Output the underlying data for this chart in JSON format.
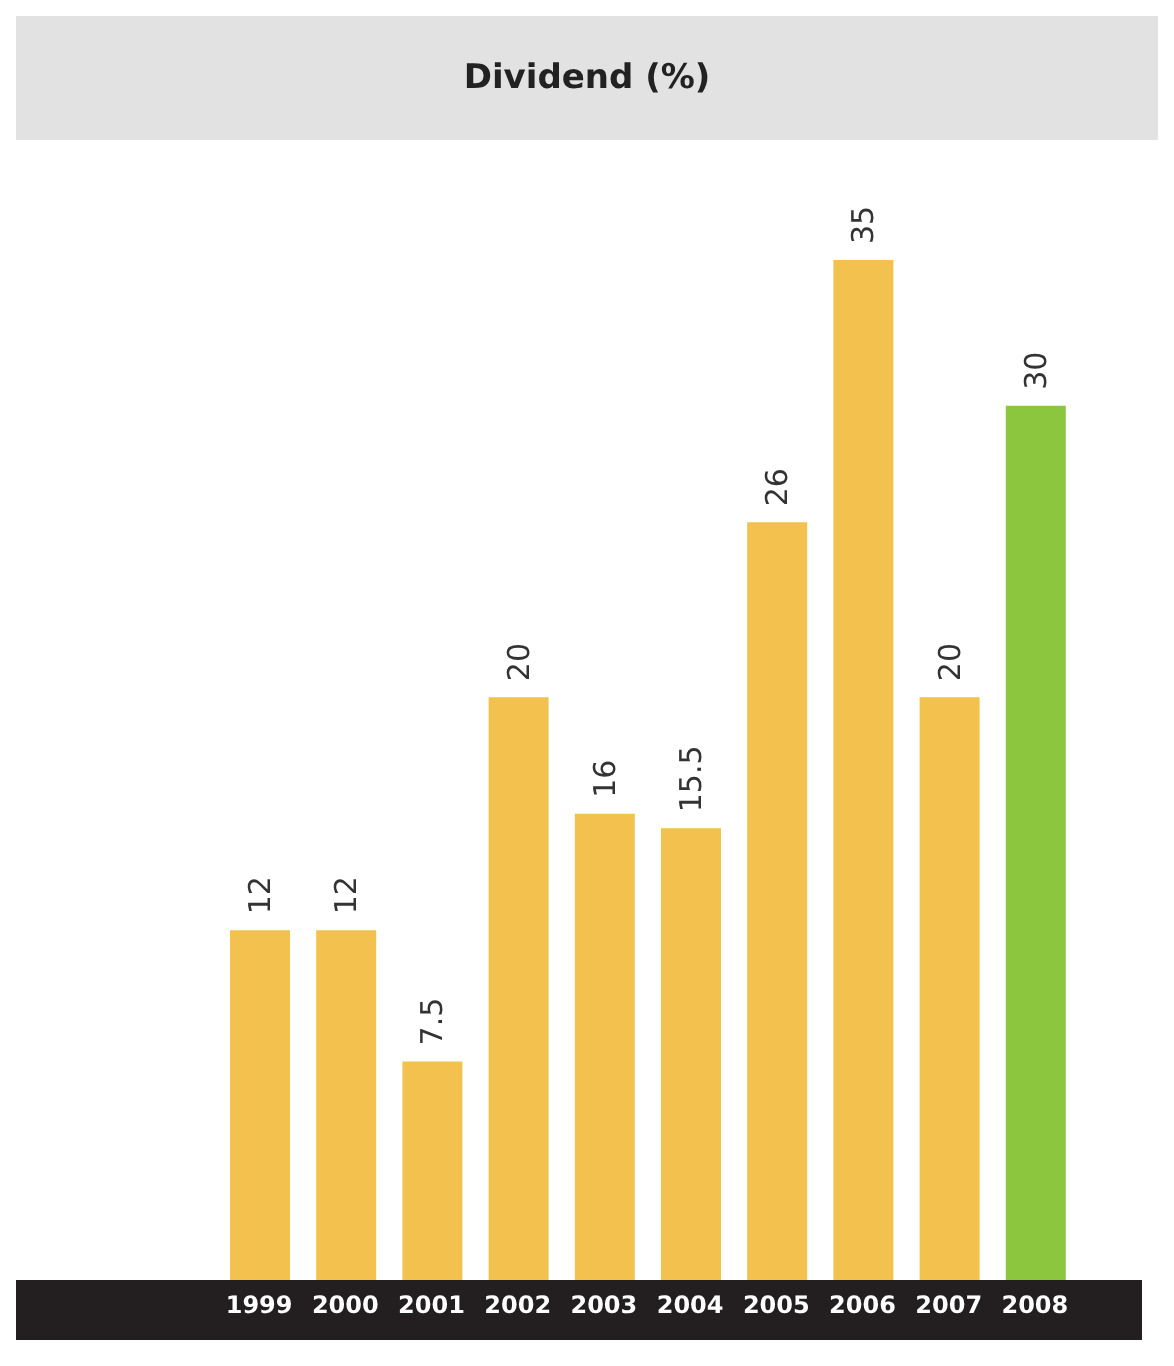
{
  "chart_data": {
    "type": "bar",
    "title": "Dividend (%)",
    "categories": [
      "1999",
      "2000",
      "2001",
      "2002",
      "2003",
      "2004",
      "2005",
      "2006",
      "2007",
      "2008"
    ],
    "values": [
      12,
      12,
      7.5,
      20,
      16,
      15.5,
      26,
      35,
      20,
      30
    ],
    "colors": [
      "#f2c14e",
      "#f2c14e",
      "#f2c14e",
      "#f2c14e",
      "#f2c14e",
      "#f2c14e",
      "#f2c14e",
      "#f2c14e",
      "#f2c14e",
      "#8cc63f"
    ],
    "data_labels": true
  }
}
